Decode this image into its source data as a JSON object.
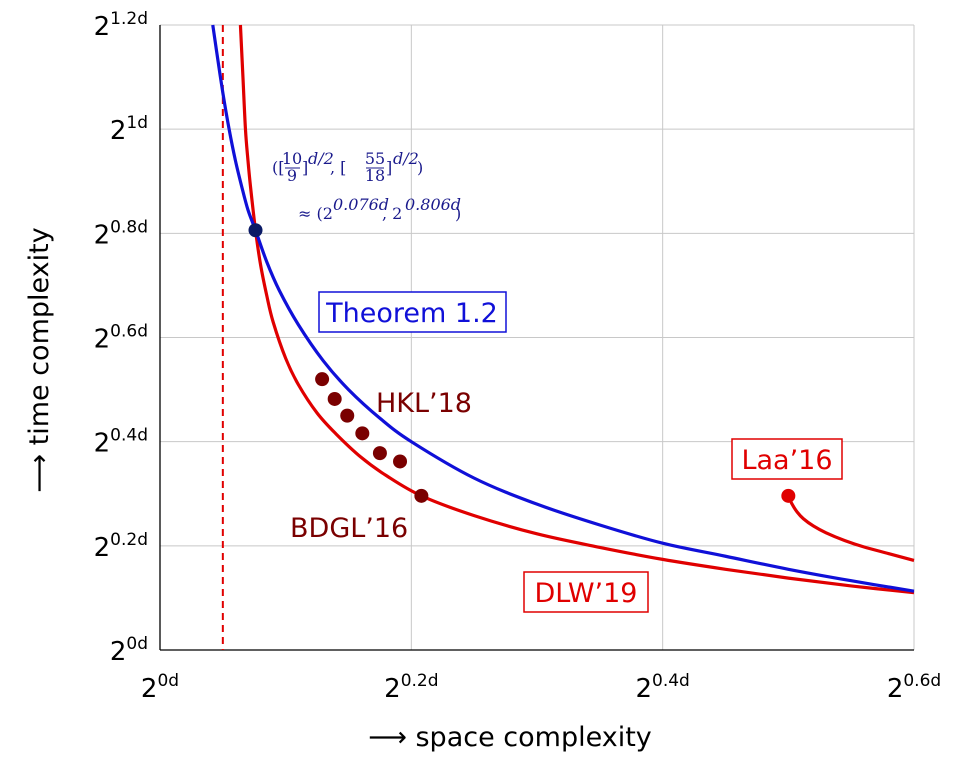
{
  "chart_data": {
    "type": "line",
    "title": "",
    "xlabel": "⟶ space complexity",
    "ylabel": "⟶ time complexity",
    "xlim": [
      0,
      0.6
    ],
    "ylim": [
      0,
      1.2
    ],
    "grid": true,
    "x_ticks": [
      {
        "value": 0,
        "label": "2",
        "exp": "0d"
      },
      {
        "value": 0.2,
        "label": "2",
        "exp": "0.2d"
      },
      {
        "value": 0.4,
        "label": "2",
        "exp": "0.4d"
      },
      {
        "value": 0.6,
        "label": "2",
        "exp": "0.6d"
      }
    ],
    "y_ticks": [
      {
        "value": 0,
        "label": "2",
        "exp": "0d"
      },
      {
        "value": 0.2,
        "label": "2",
        "exp": "0.2d"
      },
      {
        "value": 0.4,
        "label": "2",
        "exp": "0.4d"
      },
      {
        "value": 0.6,
        "label": "2",
        "exp": "0.6d"
      },
      {
        "value": 0.8,
        "label": "2",
        "exp": "0.8d"
      },
      {
        "value": 1.0,
        "label": "2",
        "exp": "1d"
      },
      {
        "value": 1.2,
        "label": "2",
        "exp": "1.2d"
      }
    ],
    "reference_line": {
      "x": 0.05,
      "style": "dashed",
      "color": "#e00000"
    },
    "series": [
      {
        "name": "Theorem 1.2",
        "color": "#1010d8",
        "x": [
          0.042,
          0.045,
          0.05,
          0.055,
          0.06,
          0.065,
          0.07,
          0.076,
          0.085,
          0.095,
          0.11,
          0.13,
          0.15,
          0.175,
          0.2,
          0.25,
          0.3,
          0.35,
          0.4,
          0.45,
          0.5,
          0.55,
          0.6
        ],
        "y": [
          1.2,
          1.15,
          1.07,
          1.0,
          0.94,
          0.89,
          0.845,
          0.806,
          0.745,
          0.69,
          0.625,
          0.555,
          0.5,
          0.445,
          0.4,
          0.33,
          0.28,
          0.24,
          0.205,
          0.18,
          0.155,
          0.133,
          0.113
        ]
      },
      {
        "name": "DLW’19",
        "color": "#e00000",
        "x": [
          0.064,
          0.066,
          0.068,
          0.07,
          0.072,
          0.076,
          0.08,
          0.085,
          0.09,
          0.1,
          0.11,
          0.125,
          0.14,
          0.16,
          0.18,
          0.208,
          0.25,
          0.3,
          0.35,
          0.4,
          0.45,
          0.5,
          0.55,
          0.6
        ],
        "y": [
          1.2,
          1.1,
          1.0,
          0.94,
          0.89,
          0.806,
          0.74,
          0.68,
          0.63,
          0.56,
          0.51,
          0.455,
          0.415,
          0.37,
          0.335,
          0.296,
          0.258,
          0.223,
          0.197,
          0.174,
          0.155,
          0.138,
          0.123,
          0.11
        ]
      },
      {
        "name": "Laa’16",
        "color": "#e00000",
        "x": [
          0.5,
          0.503,
          0.507,
          0.512,
          0.52,
          0.53,
          0.545,
          0.56,
          0.58,
          0.6
        ],
        "y": [
          0.296,
          0.28,
          0.265,
          0.252,
          0.238,
          0.225,
          0.21,
          0.198,
          0.185,
          0.172
        ]
      }
    ],
    "points": [
      {
        "series": "HKL’18",
        "color": "#7a0000",
        "x": 0.129,
        "y": 0.52
      },
      {
        "series": "HKL’18",
        "color": "#7a0000",
        "x": 0.139,
        "y": 0.482
      },
      {
        "series": "HKL’18",
        "color": "#7a0000",
        "x": 0.149,
        "y": 0.45
      },
      {
        "series": "HKL’18",
        "color": "#7a0000",
        "x": 0.161,
        "y": 0.416
      },
      {
        "series": "HKL’18",
        "color": "#7a0000",
        "x": 0.175,
        "y": 0.378
      },
      {
        "series": "HKL’18",
        "color": "#7a0000",
        "x": 0.191,
        "y": 0.362
      },
      {
        "series": "BDGL’16",
        "color": "#7a0000",
        "x": 0.208,
        "y": 0.296
      },
      {
        "series": "Laa’16",
        "color": "#e00000",
        "x": 0.5,
        "y": 0.296
      },
      {
        "series": "Theorem 1.2 / DLW’19 intersection",
        "color": "#0a1a66",
        "x": 0.076,
        "y": 0.806
      }
    ],
    "labels": {
      "theorem": "Theorem 1.2",
      "dlw": "DLW’19",
      "laa": "Laa’16",
      "hkl": "HKL’18",
      "bdgl": "BDGL’16"
    },
    "annotation": {
      "line1_open": "([",
      "frac1_num": "10",
      "frac1_den": "9",
      "line1_mid": "]",
      "exp1": "d/2",
      "line1_sep": ", [",
      "frac2_num": "55",
      "frac2_den": "18",
      "line1_close_b": "]",
      "exp2": "d/2",
      "line1_close": ")",
      "line2_pre": "≈ (2",
      "line2_exp1": "0.076d",
      "line2_mid": ", 2",
      "line2_exp2": "0.806d",
      "line2_post": ")"
    }
  }
}
